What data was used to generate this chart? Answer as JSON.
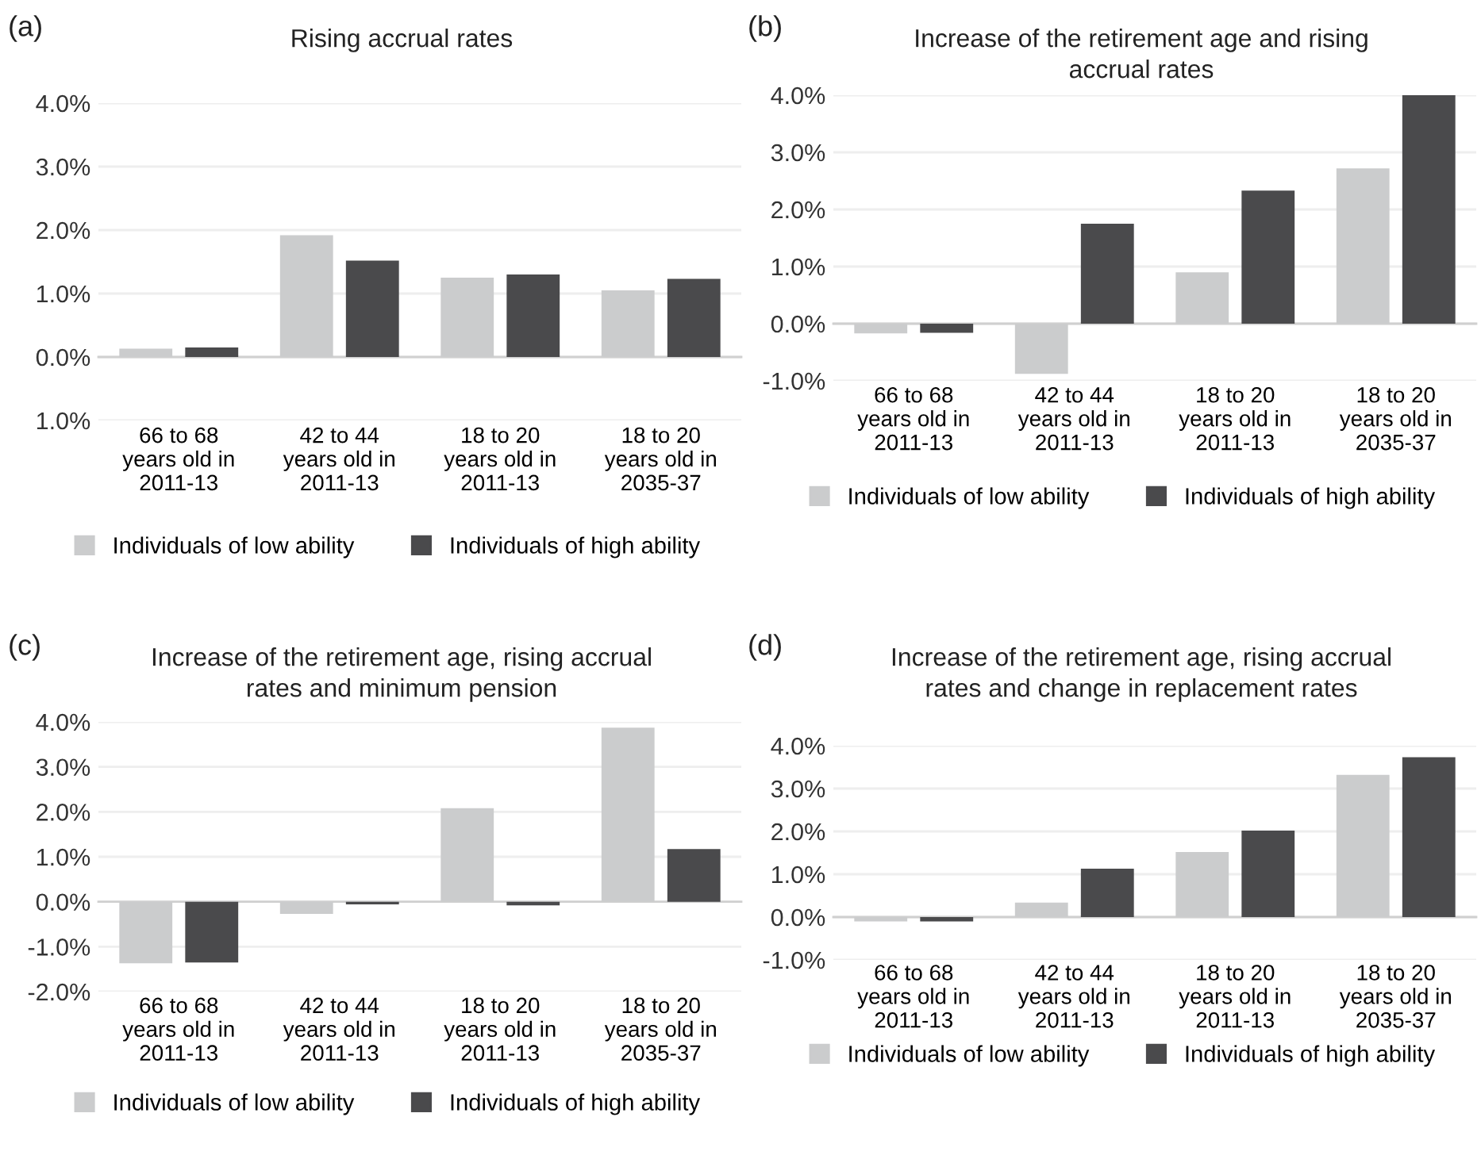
{
  "chart_data": [
    {
      "type": "bar",
      "title": "Rising accrual rates",
      "annotations": [
        "(a)"
      ],
      "categories": [
        "66 to 68\nyears old in\n2011-13",
        "42 to 44\nyears old in\n2011-13",
        "18 to 20\nyears old in\n2011-13",
        "18 to 20\nyears old in\n2035-37"
      ],
      "series": [
        {
          "name": "Individuals of low ability",
          "color": "#cbcccd",
          "values": [
            0.13,
            1.92,
            1.25,
            1.05
          ]
        },
        {
          "name": "Individuals of high ability",
          "color": "#4a4a4c",
          "values": [
            0.15,
            1.52,
            1.3,
            1.23
          ]
        }
      ],
      "ylim": [
        -1,
        4
      ],
      "yticks": [
        {
          "value": -1,
          "label": "1.0%"
        },
        {
          "value": 0,
          "label": "0.0%"
        },
        {
          "value": 1,
          "label": "1.0%"
        },
        {
          "value": 2,
          "label": "2.0%"
        },
        {
          "value": 3,
          "label": "3.0%"
        },
        {
          "value": 4,
          "label": "4.0%"
        }
      ],
      "grid": "y",
      "legend": "bottom"
    },
    {
      "type": "bar",
      "title": "Increase of the retirement age and rising\naccrual rates",
      "annotations": [
        "(b)"
      ],
      "categories": [
        "66 to 68\nyears old in\n2011-13",
        "42 to 44\nyears old in\n2011-13",
        "18 to 20\nyears old in\n2011-13",
        "18 to 20\nyears old in\n2035-37"
      ],
      "series": [
        {
          "name": "Individuals of low ability",
          "color": "#cbcccd",
          "values": [
            -0.17,
            -0.88,
            0.9,
            2.72
          ]
        },
        {
          "name": "Individuals of high ability",
          "color": "#4a4a4c",
          "values": [
            -0.16,
            1.75,
            2.33,
            4.0
          ]
        }
      ],
      "ylim": [
        -1,
        4
      ],
      "yticks": [
        {
          "value": -1,
          "label": "-1.0%"
        },
        {
          "value": 0,
          "label": "0.0%"
        },
        {
          "value": 1,
          "label": "1.0%"
        },
        {
          "value": 2,
          "label": "2.0%"
        },
        {
          "value": 3,
          "label": "3.0%"
        },
        {
          "value": 4,
          "label": "4.0%"
        }
      ],
      "grid": "y",
      "legend": "bottom"
    },
    {
      "type": "bar",
      "title": "Increase of the retirement age, rising accrual\nrates and minimum pension",
      "annotations": [
        "(c)"
      ],
      "categories": [
        "66 to 68\nyears old in\n2011-13",
        "42 to 44\nyears old in\n2011-13",
        "18 to 20\nyears old in\n2011-13",
        "18 to 20\nyears old in\n2035-37"
      ],
      "series": [
        {
          "name": "Individuals of low ability",
          "color": "#cbcccd",
          "values": [
            -1.37,
            -0.27,
            2.08,
            3.87
          ]
        },
        {
          "name": "Individuals of high ability",
          "color": "#4a4a4c",
          "values": [
            -1.35,
            -0.06,
            -0.08,
            1.17
          ]
        }
      ],
      "ylim": [
        -2,
        4
      ],
      "yticks": [
        {
          "value": -2,
          "label": "-2.0%"
        },
        {
          "value": -1,
          "label": "-1.0%"
        },
        {
          "value": 0,
          "label": "0.0%"
        },
        {
          "value": 1,
          "label": "1.0%"
        },
        {
          "value": 2,
          "label": "2.0%"
        },
        {
          "value": 3,
          "label": "3.0%"
        },
        {
          "value": 4,
          "label": "4.0%"
        }
      ],
      "grid": "y",
      "legend": "bottom"
    },
    {
      "type": "bar",
      "title": "Increase of the retirement age, rising accrual\nrates and change in replacement rates",
      "annotations": [
        "(d)"
      ],
      "categories": [
        "66 to 68\nyears old in\n2011-13",
        "42 to 44\nyears old in\n2011-13",
        "18 to 20\nyears old in\n2011-13",
        "18 to 20\nyears old in\n2035-37"
      ],
      "series": [
        {
          "name": "Individuals of low ability",
          "color": "#cbcccd",
          "values": [
            -0.1,
            0.34,
            1.52,
            3.32
          ]
        },
        {
          "name": "Individuals of high ability",
          "color": "#4a4a4c",
          "values": [
            -0.1,
            1.13,
            2.02,
            3.73
          ]
        }
      ],
      "ylim": [
        -1,
        4
      ],
      "yticks": [
        {
          "value": -1,
          "label": "-1.0%"
        },
        {
          "value": 0,
          "label": "0.0%"
        },
        {
          "value": 1,
          "label": "1.0%"
        },
        {
          "value": 2,
          "label": "2.0%"
        },
        {
          "value": 3,
          "label": "3.0%"
        },
        {
          "value": 4,
          "label": "4.0%"
        }
      ],
      "grid": "y",
      "legend": "bottom"
    }
  ]
}
